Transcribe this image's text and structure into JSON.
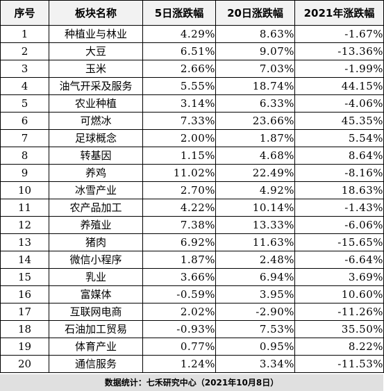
{
  "table": {
    "headers": [
      "序号",
      "板块名称",
      "5日涨跌幅",
      "20日涨跌幅",
      "2021年涨跌幅"
    ],
    "rows": [
      [
        "1",
        "种植业与林业",
        "4.29%",
        "8.63%",
        "-1.67%"
      ],
      [
        "2",
        "大豆",
        "6.51%",
        "9.07%",
        "-13.36%"
      ],
      [
        "3",
        "玉米",
        "2.66%",
        "7.03%",
        "-1.99%"
      ],
      [
        "4",
        "油气开采及服务",
        "5.55%",
        "18.74%",
        "44.15%"
      ],
      [
        "5",
        "农业种植",
        "3.14%",
        "6.33%",
        "-4.06%"
      ],
      [
        "6",
        "可燃冰",
        "7.33%",
        "23.66%",
        "45.35%"
      ],
      [
        "7",
        "足球概念",
        "2.00%",
        "1.87%",
        "5.54%"
      ],
      [
        "8",
        "转基因",
        "1.15%",
        "4.68%",
        "8.64%"
      ],
      [
        "9",
        "养鸡",
        "11.02%",
        "22.49%",
        "-8.16%"
      ],
      [
        "10",
        "冰雪产业",
        "2.70%",
        "4.92%",
        "18.63%"
      ],
      [
        "11",
        "农产品加工",
        "4.22%",
        "10.14%",
        "-1.43%"
      ],
      [
        "12",
        "养殖业",
        "7.38%",
        "13.33%",
        "-6.06%"
      ],
      [
        "13",
        "猪肉",
        "6.92%",
        "11.63%",
        "-15.65%"
      ],
      [
        "14",
        "微信小程序",
        "1.87%",
        "2.48%",
        "-6.64%"
      ],
      [
        "15",
        "乳业",
        "3.66%",
        "6.94%",
        "3.69%"
      ],
      [
        "16",
        "富媒体",
        "-0.59%",
        "3.95%",
        "10.60%"
      ],
      [
        "17",
        "互联网电商",
        "2.02%",
        "-2.90%",
        "-11.26%"
      ],
      [
        "18",
        "石油加工贸易",
        "-0.93%",
        "7.53%",
        "35.50%"
      ],
      [
        "19",
        "体育产业",
        "0.77%",
        "0.95%",
        "8.22%"
      ],
      [
        "20",
        "通信服务",
        "1.24%",
        "3.34%",
        "-11.53%"
      ]
    ]
  },
  "footer": {
    "source": "数据统计：七禾研究中心（2021年10月8日）"
  }
}
